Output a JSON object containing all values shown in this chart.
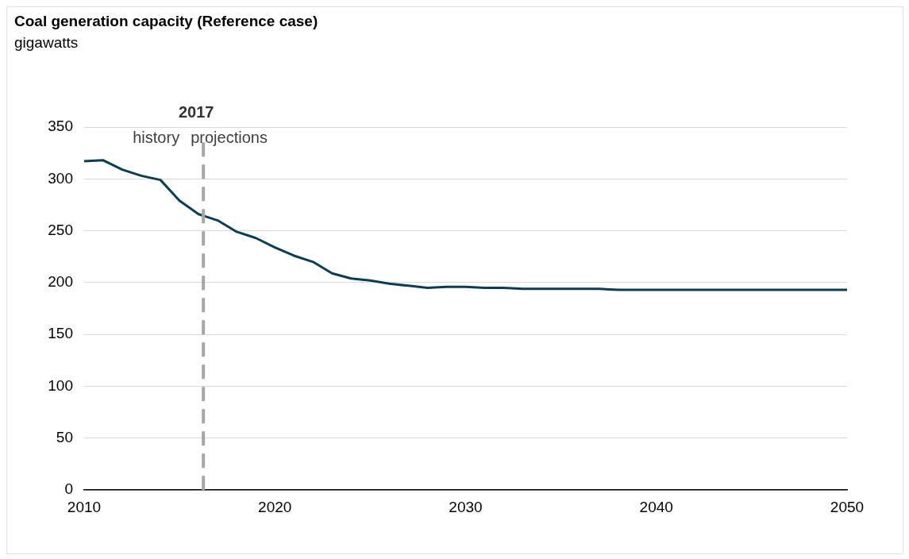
{
  "chart_data": {
    "type": "line",
    "title": "Coal generation capacity (Reference case)",
    "subtitle": "gigawatts",
    "x": [
      2010,
      2011,
      2012,
      2013,
      2014,
      2015,
      2016,
      2017,
      2018,
      2019,
      2020,
      2021,
      2022,
      2023,
      2024,
      2025,
      2026,
      2027,
      2028,
      2029,
      2030,
      2031,
      2032,
      2033,
      2034,
      2035,
      2036,
      2037,
      2038,
      2039,
      2040,
      2041,
      2042,
      2043,
      2044,
      2045,
      2046,
      2047,
      2048,
      2049,
      2050
    ],
    "series": [
      {
        "color": "#0b3d55",
        "values": [
          317,
          318,
          309,
          303,
          299,
          279,
          266,
          260,
          249,
          243,
          234,
          226,
          220,
          209,
          204,
          202,
          199,
          197,
          195,
          196,
          196,
          195,
          195,
          194,
          194,
          194,
          194,
          194,
          193,
          193,
          193,
          193,
          193,
          193,
          193,
          193,
          193,
          193,
          193,
          193,
          193
        ]
      }
    ],
    "xlim": [
      2010,
      2050
    ],
    "xticks": [
      2010,
      2020,
      2030,
      2040,
      2050
    ],
    "ylim": [
      0,
      350
    ],
    "yticks": [
      0,
      50,
      100,
      150,
      200,
      250,
      300,
      350
    ],
    "grid": "y",
    "legend": false,
    "marker": "none",
    "line_style": "solid",
    "ref_lines": [
      {
        "axis": "x",
        "value": 2016.25,
        "color": "#a6a6a6",
        "line_style": "dashed"
      }
    ],
    "annotations": [
      "2017",
      "history",
      "projections"
    ]
  }
}
